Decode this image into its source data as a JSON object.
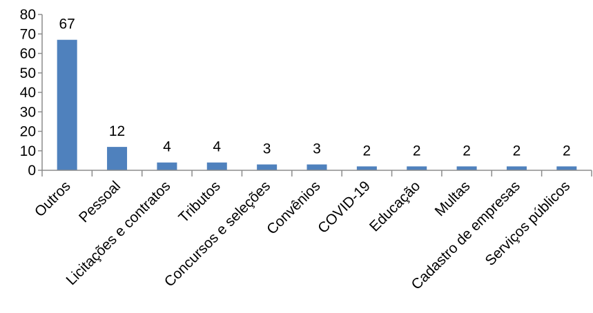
{
  "chart_data": {
    "type": "bar",
    "title": "",
    "xlabel": "",
    "ylabel": "",
    "ylim": [
      0,
      80
    ],
    "yticks": [
      "0",
      "10",
      "20",
      "30",
      "40",
      "50",
      "60",
      "70",
      "80"
    ],
    "categories": [
      "Outros",
      "Pessoal",
      "Licitações e contratos",
      "Tributos",
      "Concursos e seleções",
      "Convênios",
      "COVID-19",
      "Educação",
      "Multas",
      "Cadastro de empresas",
      "Serviços públicos"
    ],
    "values": [
      67,
      12,
      4,
      4,
      3,
      3,
      2,
      2,
      2,
      2,
      2
    ],
    "data_labels": [
      "67",
      "12",
      "4",
      "4",
      "3",
      "3",
      "2",
      "2",
      "2",
      "2",
      "2"
    ],
    "bar_color": "#4f81bd",
    "grid": false,
    "legend": "none"
  }
}
